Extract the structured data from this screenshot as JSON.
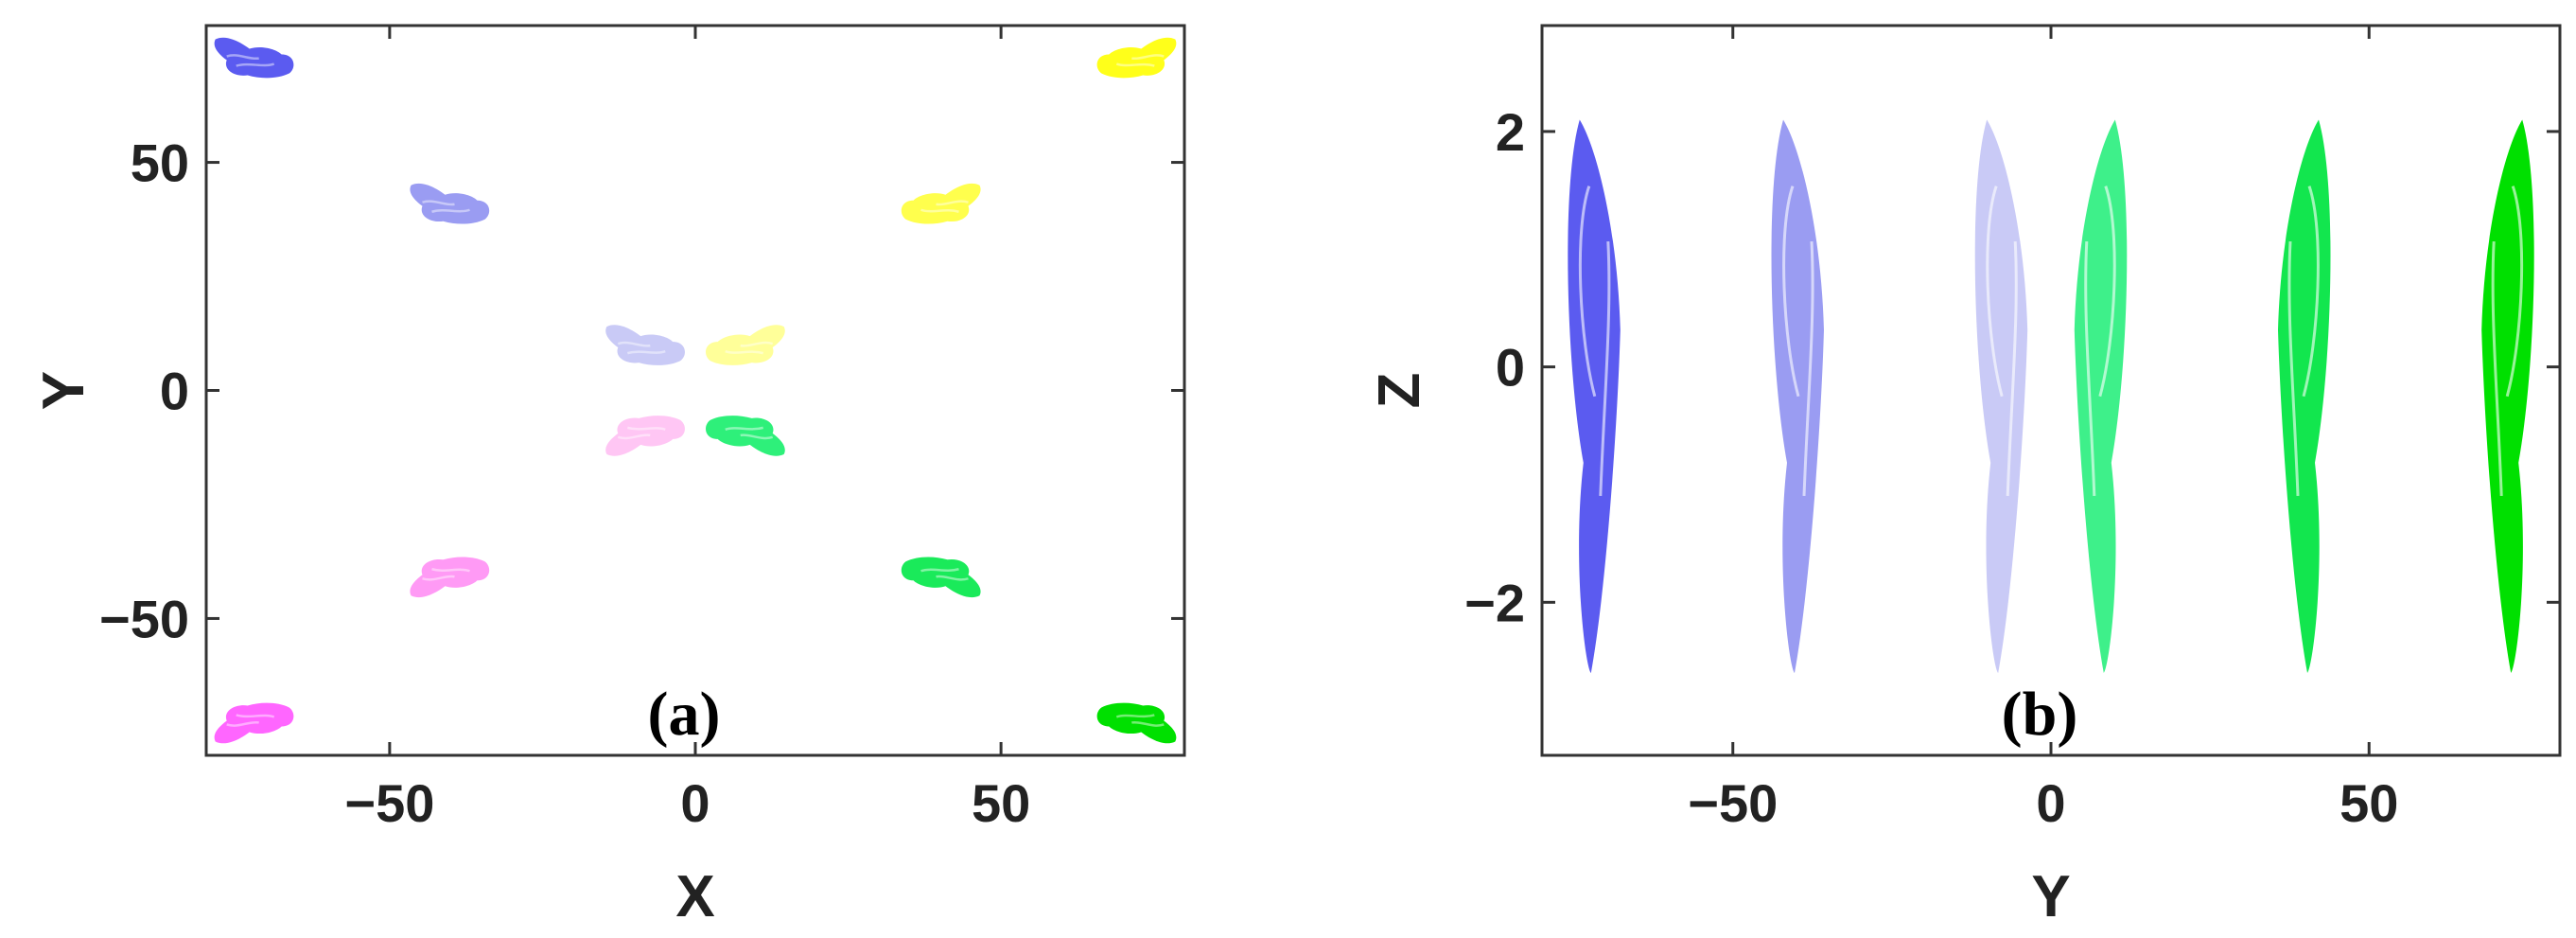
{
  "chart_data": [
    {
      "type": "scatter",
      "panel_label": "(a)",
      "xlabel": "X",
      "ylabel": "Y",
      "xlim": [
        -80,
        80
      ],
      "ylim": [
        -80,
        80
      ],
      "x_ticks": [
        -50,
        0,
        50
      ],
      "y_ticks": [
        -50,
        0,
        50
      ],
      "x_tick_labels": [
        "−50",
        "0",
        "50"
      ],
      "y_tick_labels": [
        "−50",
        "0",
        "50"
      ],
      "grid": false,
      "series": [
        {
          "color": "#5b5bf0",
          "x": -72,
          "y": 72
        },
        {
          "color": "#9a9cf2",
          "x": -40,
          "y": 40
        },
        {
          "color": "#c9caf6",
          "x": -8,
          "y": 9
        },
        {
          "color": "#ffff1a",
          "x": 72,
          "y": 72
        },
        {
          "color": "#ffff4d",
          "x": 40,
          "y": 40
        },
        {
          "color": "#ffff99",
          "x": 8,
          "y": 9
        },
        {
          "color": "#ff66ff",
          "x": -72,
          "y": -72
        },
        {
          "color": "#ff9af5",
          "x": -40,
          "y": -40
        },
        {
          "color": "#ffc6f4",
          "x": -8,
          "y": -9
        },
        {
          "color": "#00e000",
          "x": 72,
          "y": -72
        },
        {
          "color": "#1aea5a",
          "x": 40,
          "y": -40
        },
        {
          "color": "#2ef07a",
          "x": 8,
          "y": -9
        }
      ]
    },
    {
      "type": "line",
      "panel_label": "(b)",
      "xlabel": "Y",
      "ylabel": "Z",
      "xlim": [
        -80,
        80
      ],
      "ylim": [
        -3.3,
        2.9
      ],
      "x_ticks": [
        -50,
        0,
        50
      ],
      "y_ticks": [
        -2,
        0,
        2
      ],
      "x_tick_labels": [
        "−50",
        "0",
        "50"
      ],
      "y_tick_labels": [
        "−2",
        "0",
        "2"
      ],
      "grid": false,
      "series": [
        {
          "color": "#5b5bf0",
          "y_center": -72,
          "z_range": [
            -2.6,
            2.1
          ]
        },
        {
          "color": "#9a9cf2",
          "y_center": -40,
          "z_range": [
            -2.6,
            2.1
          ]
        },
        {
          "color": "#c9caf6",
          "y_center": -8,
          "z_range": [
            -2.6,
            2.1
          ]
        },
        {
          "color": "#3ef08a",
          "y_center": 8,
          "z_range": [
            -2.6,
            2.1
          ]
        },
        {
          "color": "#12e64e",
          "y_center": 40,
          "z_range": [
            -2.6,
            2.1
          ]
        },
        {
          "color": "#00e000",
          "y_center": 72,
          "z_range": [
            -2.6,
            2.1
          ]
        }
      ]
    }
  ]
}
